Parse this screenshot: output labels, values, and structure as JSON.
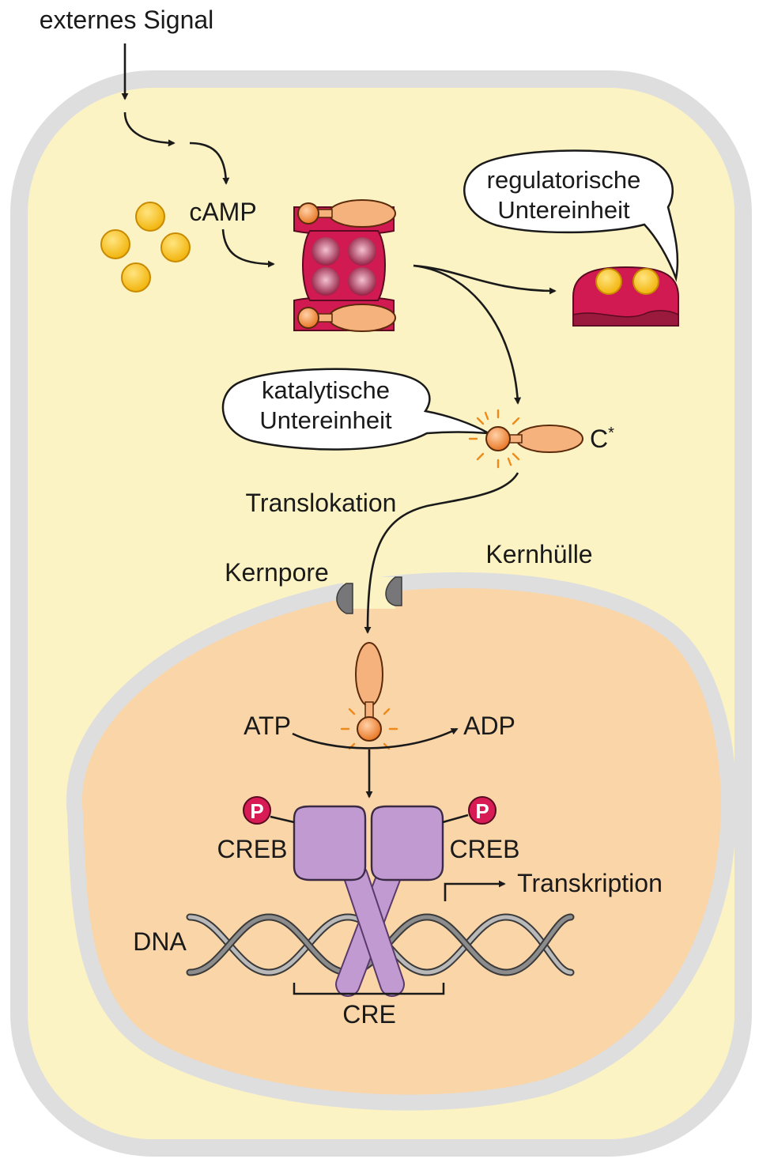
{
  "labels": {
    "external_signal": "externes Signal",
    "camp": "cAMP",
    "regulatory_subunit_line1": "regulatorische",
    "regulatory_subunit_line2": "Untereinheit",
    "catalytic_subunit_line1": "katalytische",
    "catalytic_subunit_line2": "Untereinheit",
    "c_star": "C*",
    "translocation": "Translokation",
    "nuclear_pore": "Kernpore",
    "nuclear_envelope": "Kernhülle",
    "atp": "ATP",
    "adp": "ADP",
    "phosphate_left": "P",
    "phosphate_right": "P",
    "creb_left": "CREB",
    "creb_right": "CREB",
    "transcription": "Transkription",
    "dna": "DNA",
    "cre": "CRE"
  },
  "colors": {
    "cytoplasm": "#fbf3c4",
    "membrane": "#dedede",
    "nucleus": "#f9d5a8",
    "pka_regulatory": "#d11a52",
    "pka_catalytic": "#f5b27d",
    "camp": "#f5c21b",
    "creb": "#c19ad2",
    "phosphate": "#d81a55",
    "spark": "#ee8a1a"
  }
}
